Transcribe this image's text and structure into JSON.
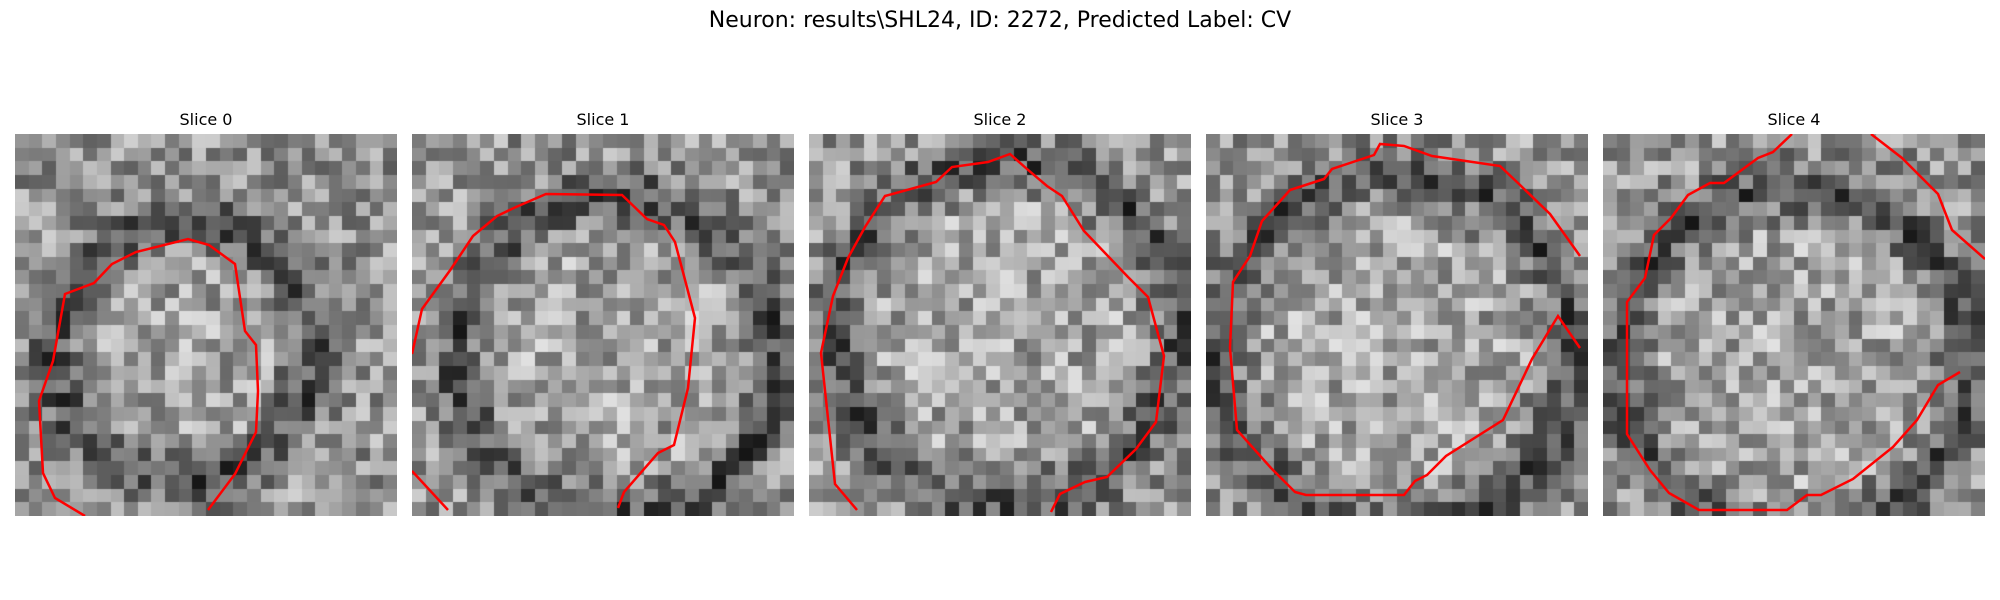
{
  "figure": {
    "title": "Neuron: results\\SHL24, ID: 2272, Predicted Label: CV"
  },
  "panels": [
    {
      "title": "Slice 0"
    },
    {
      "title": "Slice 1"
    },
    {
      "title": "Slice 2"
    },
    {
      "title": "Slice 3"
    },
    {
      "title": "Slice 4"
    }
  ],
  "colors": {
    "contour": "#ff0000",
    "background": "#ffffff"
  }
}
